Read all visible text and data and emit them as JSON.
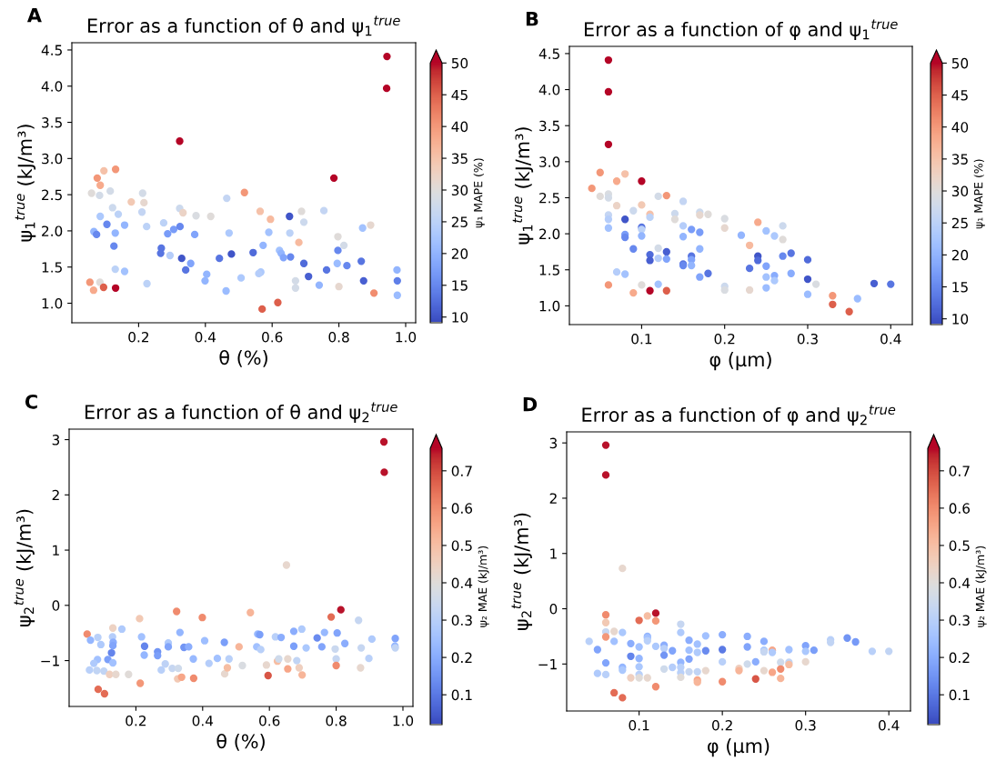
{
  "chart_data": [
    {
      "type": "scatter",
      "title": "Error as a function of θ and ψ$_{1}$$^{true}$",
      "xlabel": "θ (%)",
      "ylabel": "ψ$_{1}$$^{true}$ (kJ/m³)",
      "clabel": "ψ₁ MAPE (%)",
      "annotations": [
        "A"
      ],
      "marker": "circle",
      "grid": false,
      "xlim": [
        0.0,
        1.03
      ],
      "ylim": [
        0.73,
        4.6
      ],
      "xticks": [
        0.2,
        0.4,
        0.6,
        0.8,
        {
          "value": 1,
          "label": "1.0"
        }
      ],
      "yticks": [
        {
          "value": 1,
          "label": "1.0"
        },
        1.5,
        {
          "value": 2,
          "label": "2.0"
        },
        2.5,
        {
          "value": 3,
          "label": "3.0"
        },
        3.5,
        {
          "value": 4,
          "label": "4.0"
        },
        4.5
      ],
      "clim": [
        9.1,
        50
      ],
      "cticks": [
        10,
        15,
        20,
        25,
        30,
        35,
        40,
        45,
        50
      ],
      "x": [
        0.944,
        0.943,
        0.323,
        0.785,
        0.131,
        0.076,
        0.096,
        0.085,
        0.059,
        0.083,
        0.115,
        0.178,
        0.212,
        0.216,
        0.122,
        0.139,
        0.21,
        0.085,
        0.105,
        0.158,
        0.066,
        0.074,
        0.13,
        0.224,
        0.126,
        0.275,
        0.323,
        0.333,
        0.372,
        0.416,
        0.287,
        0.305,
        0.324,
        0.368,
        0.268,
        0.266,
        0.294,
        0.329,
        0.356,
        0.341,
        0.404,
        0.399,
        0.442,
        0.478,
        0.464,
        0.471,
        0.462,
        0.507,
        0.543,
        0.517,
        0.564,
        0.595,
        0.59,
        0.573,
        0.566,
        0.56,
        0.652,
        0.653,
        0.655,
        0.622,
        0.627,
        0.634,
        0.57,
        0.617,
        0.688,
        0.695,
        0.68,
        0.695,
        0.709,
        0.67,
        0.67,
        0.741,
        0.755,
        0.763,
        0.797,
        0.815,
        0.797,
        0.795,
        0.824,
        0.8,
        0.871,
        0.895,
        0.867,
        0.874,
        0.905,
        0.974,
        0.975,
        0.975,
        0.054,
        0.065,
        0.084,
        0.095,
        0.131,
        0.13,
        0.158,
        0.225
      ],
      "values": [
        4.41,
        3.97,
        3.24,
        2.73,
        2.85,
        2.73,
        2.83,
        2.63,
        2.52,
        2.49,
        2.55,
        2.4,
        2.52,
        2.39,
        2.32,
        2.23,
        2.26,
        2.2,
        2.09,
        2.08,
        1.99,
        1.95,
        1.97,
        2.06,
        1.79,
        2.11,
        2.31,
        2.25,
        2.21,
        2.2,
        1.96,
        2.02,
        2.06,
        1.95,
        1.76,
        1.69,
        1.66,
        1.62,
        1.55,
        1.46,
        1.4,
        1.31,
        1.62,
        1.68,
        2.45,
        1.97,
        1.17,
        1.35,
        1.7,
        2.53,
        2.27,
        2.16,
        1.98,
        1.8,
        1.43,
        1.41,
        2.2,
        1.97,
        1.64,
        1.73,
        1.69,
        1.63,
        0.92,
        1.01,
        2.27,
        2.12,
        1.84,
        1.55,
        1.37,
        1.31,
        1.21,
        1.25,
        2.28,
        1.46,
        1.92,
        1.8,
        1.73,
        1.55,
        1.52,
        1.23,
        2.04,
        2.08,
        1.58,
        1.31,
        1.14,
        1.46,
        1.31,
        1.11,
        1.29,
        1.18,
        1.29,
        1.22,
        1.21,
        1.47,
        1.44,
        1.27
      ],
      "cvalues": [
        50,
        50,
        50,
        50,
        40,
        40,
        35,
        38,
        30,
        28,
        28,
        34,
        28,
        31,
        27,
        25,
        26,
        23,
        15,
        20,
        20,
        15,
        20,
        25,
        15,
        25,
        27,
        32,
        29,
        30,
        17,
        17,
        15,
        18,
        13,
        13,
        24,
        10,
        18,
        13,
        20,
        20,
        13,
        10,
        26,
        23,
        21,
        23,
        12,
        40,
        35,
        36,
        22,
        20,
        23,
        24,
        10,
        25,
        15,
        22,
        20,
        18,
        45,
        45,
        30,
        27,
        36,
        12,
        11,
        28,
        28,
        20,
        26,
        13,
        30,
        28,
        15,
        21,
        15,
        31,
        22,
        31,
        13,
        11,
        41,
        20,
        14,
        21,
        40,
        38,
        30,
        45,
        50,
        25,
        22,
        25
      ]
    },
    {
      "type": "scatter",
      "title": "Error as a function of φ and ψ$_{1}$$^{true}$",
      "xlabel": "φ (µm)",
      "ylabel": "ψ$_{1}$$^{true}$ (kJ/m³)",
      "clabel": "ψ₁ MAPE (%)",
      "annotations": [
        "B"
      ],
      "marker": "circle",
      "grid": false,
      "xlim": [
        0.013,
        0.426
      ],
      "ylim": [
        0.74,
        4.6
      ],
      "xticks": [
        0.1,
        0.2,
        0.3,
        0.4
      ],
      "yticks": [
        {
          "value": 1,
          "label": "1.0"
        },
        1.5,
        {
          "value": 2,
          "label": "2.0"
        },
        2.5,
        {
          "value": 3,
          "label": "3.0"
        },
        3.5,
        {
          "value": 4,
          "label": "4.0"
        },
        4.5
      ],
      "clim": [
        9.1,
        50
      ],
      "cticks": [
        10,
        15,
        20,
        25,
        30,
        35,
        40,
        45,
        50
      ],
      "x": [
        0.06,
        0.06,
        0.06,
        0.06,
        0.06,
        0.06,
        0.06,
        0.06,
        0.06,
        0.04,
        0.05,
        0.05,
        0.07,
        0.07,
        0.07,
        0.08,
        0.08,
        0.08,
        0.08,
        0.08,
        0.09,
        0.09,
        0.09,
        0.1,
        0.1,
        0.1,
        0.1,
        0.1,
        0.1,
        0.11,
        0.11,
        0.11,
        0.11,
        0.11,
        0.12,
        0.12,
        0.12,
        0.12,
        0.13,
        0.13,
        0.13,
        0.13,
        0.14,
        0.14,
        0.15,
        0.15,
        0.15,
        0.15,
        0.15,
        0.16,
        0.16,
        0.16,
        0.16,
        0.17,
        0.17,
        0.17,
        0.17,
        0.17,
        0.18,
        0.18,
        0.2,
        0.2,
        0.2,
        0.2,
        0.22,
        0.23,
        0.23,
        0.23,
        0.24,
        0.24,
        0.24,
        0.25,
        0.25,
        0.25,
        0.25,
        0.26,
        0.26,
        0.26,
        0.27,
        0.27,
        0.27,
        0.28,
        0.28,
        0.3,
        0.3,
        0.3,
        0.31,
        0.33,
        0.33,
        0.35,
        0.36,
        0.38,
        0.4
      ],
      "values": [
        4.41,
        3.97,
        3.24,
        2.55,
        2.5,
        2.26,
        2.2,
        2.08,
        1.29,
        2.63,
        2.85,
        2.52,
        2.73,
        2.39,
        1.47,
        2.83,
        2.2,
        1.99,
        1.95,
        1.44,
        2.32,
        1.79,
        1.18,
        2.73,
        2.4,
        2.09,
        2.06,
        1.97,
        1.29,
        2.27,
        2.23,
        1.71,
        1.63,
        1.21,
        2.52,
        1.8,
        1.66,
        1.3,
        2.53,
        1.75,
        1.65,
        1.21,
        2.28,
        2.2,
        2.45,
        2.11,
        1.96,
        1.58,
        1.56,
        2.06,
        1.69,
        1.64,
        1.56,
        2.3,
        2.26,
        2.02,
        1.79,
        1.4,
        2.27,
        1.45,
        2.21,
        2.08,
        1.27,
        1.22,
        1.98,
        1.84,
        1.52,
        1.22,
        2.16,
        1.69,
        1.63,
        2.04,
        1.55,
        1.4,
        1.25,
        1.97,
        1.42,
        1.35,
        2.11,
        1.92,
        1.69,
        1.73,
        1.45,
        1.64,
        1.37,
        1.16,
        1.3,
        1.14,
        1.02,
        0.92,
        1.1,
        1.31,
        1.3
      ],
      "cvalues": [
        50,
        50,
        50,
        29,
        28,
        26,
        24,
        22,
        40,
        40,
        40,
        30,
        38,
        32,
        24,
        35,
        10,
        17,
        15,
        22,
        27,
        15,
        38,
        50,
        34,
        13,
        25,
        20,
        30,
        35,
        25,
        12,
        11,
        50,
        28,
        28,
        24,
        22,
        40,
        11,
        18,
        45,
        27,
        30,
        26,
        24,
        20,
        13,
        15,
        17,
        13,
        18,
        20,
        27,
        31,
        17,
        20,
        18,
        30,
        13,
        29,
        31,
        27,
        29,
        20,
        36,
        13,
        31,
        38,
        10,
        12,
        22,
        18,
        22,
        21,
        23,
        19,
        23,
        27,
        30,
        15,
        13,
        19,
        12,
        10,
        21,
        29,
        40,
        45,
        45,
        21,
        11,
        13
      ]
    },
    {
      "type": "scatter",
      "title": "Error as a function of θ and ψ$_{2}$$^{true}$",
      "xlabel": "θ (%)",
      "ylabel": "ψ$_{2}$$^{true}$ (kJ/m³)",
      "clabel": "ψ₂ MAE (kJ/m³)",
      "annotations": [
        "C"
      ],
      "marker": "circle",
      "grid": false,
      "xlim": [
        0.0,
        1.03
      ],
      "ylim": [
        -1.83,
        3.19
      ],
      "xticks": [
        0.2,
        0.4,
        0.6,
        0.8,
        {
          "value": 1,
          "label": "1.0"
        }
      ],
      "yticks": [
        {
          "value": -1,
          "label": "−1"
        },
        0,
        1,
        2,
        3
      ],
      "clim": [
        0.02,
        0.76
      ],
      "cticks": [
        0.1,
        0.2,
        0.3,
        0.4,
        0.5,
        0.6,
        0.7
      ],
      "x": [
        0.943,
        0.944,
        0.651,
        0.814,
        0.785,
        0.867,
        0.322,
        0.399,
        0.543,
        0.211,
        0.054,
        0.131,
        0.158,
        0.064,
        0.086,
        0.095,
        0.13,
        0.132,
        0.131,
        0.127,
        0.116,
        0.131,
        0.085,
        0.074,
        0.061,
        0.083,
        0.104,
        0.121,
        0.14,
        0.178,
        0.087,
        0.106,
        0.213,
        0.217,
        0.226,
        0.225,
        0.265,
        0.265,
        0.276,
        0.288,
        0.297,
        0.297,
        0.309,
        0.327,
        0.325,
        0.337,
        0.332,
        0.344,
        0.358,
        0.373,
        0.372,
        0.406,
        0.419,
        0.444,
        0.465,
        0.466,
        0.474,
        0.479,
        0.509,
        0.519,
        0.565,
        0.571,
        0.562,
        0.574,
        0.596,
        0.591,
        0.618,
        0.635,
        0.624,
        0.628,
        0.655,
        0.655,
        0.673,
        0.673,
        0.682,
        0.697,
        0.71,
        0.689,
        0.698,
        0.743,
        0.765,
        0.757,
        0.797,
        0.803,
        0.826,
        0.8,
        0.8,
        0.873,
        0.875,
        0.898,
        0.907,
        0.977,
        0.976,
        0.977
      ],
      "values": [
        2.96,
        2.41,
        0.73,
        -0.08,
        -0.21,
        -0.27,
        -0.11,
        -0.22,
        -0.13,
        -0.24,
        -0.52,
        -0.41,
        -0.43,
        -0.63,
        -0.58,
        -0.71,
        -0.57,
        -0.67,
        -0.73,
        -0.86,
        -0.98,
        -1.04,
        -0.98,
        -1.05,
        -1.17,
        -1.18,
        -1.19,
        -1.25,
        -1.25,
        -1.25,
        -1.52,
        -1.6,
        -1.41,
        -0.57,
        -0.74,
        -0.9,
        -0.84,
        -0.91,
        -1.17,
        -1.06,
        -0.68,
        -0.75,
        -1.14,
        -1.14,
        -1.33,
        -1.3,
        -0.49,
        -0.76,
        -0.75,
        -1.32,
        -0.97,
        -0.64,
        -1.05,
        -0.96,
        -0.67,
        -1.24,
        -1.13,
        -0.97,
        -0.75,
        -1.09,
        -0.52,
        -0.53,
        -0.75,
        -0.8,
        -1.27,
        -1.08,
        -0.57,
        -0.58,
        -1.01,
        -0.97,
        -0.97,
        -1.15,
        -0.47,
        -0.74,
        -1.0,
        -0.43,
        -0.77,
        -1.13,
        -1.26,
        -0.59,
        -0.49,
        -0.75,
        -0.79,
        -0.5,
        -0.69,
        -0.97,
        -1.09,
        -1.13,
        -0.77,
        -0.96,
        -0.61,
        -0.6,
        -0.74,
        -0.77
      ],
      "cvalues": [
        0.75,
        0.75,
        0.42,
        0.75,
        0.65,
        0.33,
        0.6,
        0.6,
        0.52,
        0.47,
        0.6,
        0.44,
        0.28,
        0.22,
        0.3,
        0.28,
        0.29,
        0.2,
        0.18,
        0.12,
        0.17,
        0.25,
        0.25,
        0.28,
        0.3,
        0.32,
        0.32,
        0.45,
        0.42,
        0.4,
        0.65,
        0.65,
        0.58,
        0.25,
        0.12,
        0.22,
        0.15,
        0.17,
        0.3,
        0.31,
        0.28,
        0.18,
        0.33,
        0.35,
        0.47,
        0.55,
        0.22,
        0.15,
        0.2,
        0.6,
        0.23,
        0.24,
        0.29,
        0.25,
        0.17,
        0.42,
        0.5,
        0.3,
        0.52,
        0.38,
        0.23,
        0.17,
        0.25,
        0.3,
        0.68,
        0.42,
        0.3,
        0.2,
        0.5,
        0.35,
        0.42,
        0.55,
        0.2,
        0.17,
        0.32,
        0.28,
        0.27,
        0.45,
        0.52,
        0.13,
        0.23,
        0.18,
        0.34,
        0.18,
        0.2,
        0.33,
        0.6,
        0.42,
        0.33,
        0.3,
        0.28,
        0.18,
        0.22,
        0.32
      ]
    },
    {
      "type": "scatter",
      "title": "Error as a function of φ and ψ$_{2}$$^{true}$",
      "xlabel": "φ (µm)",
      "ylabel": "ψ$_{2}$$^{true}$ (kJ/m³)",
      "clabel": "ψ₂ MAE (kJ/m³)",
      "annotations": [
        "D"
      ],
      "marker": "circle",
      "grid": false,
      "xlim": [
        0.013,
        0.426
      ],
      "ylim": [
        -1.85,
        3.2
      ],
      "xticks": [
        0.1,
        0.2,
        0.3,
        0.4
      ],
      "yticks": [
        {
          "value": -1,
          "label": "−1"
        },
        0,
        1,
        2,
        3
      ],
      "clim": [
        0.02,
        0.76
      ],
      "cticks": [
        0.1,
        0.2,
        0.3,
        0.4,
        0.5,
        0.6,
        0.7
      ],
      "x": [
        0.06,
        0.06,
        0.06,
        0.06,
        0.06,
        0.06,
        0.06,
        0.06,
        0.04,
        0.05,
        0.05,
        0.07,
        0.07,
        0.07,
        0.08,
        0.08,
        0.08,
        0.08,
        0.08,
        0.09,
        0.09,
        0.09,
        0.1,
        0.1,
        0.1,
        0.1,
        0.1,
        0.1,
        0.11,
        0.11,
        0.11,
        0.11,
        0.11,
        0.12,
        0.12,
        0.12,
        0.12,
        0.13,
        0.13,
        0.13,
        0.13,
        0.14,
        0.14,
        0.15,
        0.15,
        0.15,
        0.15,
        0.15,
        0.15,
        0.16,
        0.16,
        0.16,
        0.16,
        0.17,
        0.17,
        0.17,
        0.17,
        0.17,
        0.18,
        0.18,
        0.18,
        0.2,
        0.2,
        0.2,
        0.2,
        0.22,
        0.22,
        0.23,
        0.23,
        0.23,
        0.24,
        0.24,
        0.25,
        0.25,
        0.25,
        0.25,
        0.26,
        0.26,
        0.26,
        0.27,
        0.27,
        0.27,
        0.28,
        0.28,
        0.28,
        0.3,
        0.3,
        0.3,
        0.31,
        0.33,
        0.33,
        0.35,
        0.36,
        0.38,
        0.4
      ],
      "values": [
        2.96,
        2.42,
        -0.11,
        -0.25,
        -0.42,
        -0.51,
        -0.98,
        -1.19,
        -0.59,
        -0.74,
        -1.17,
        -0.41,
        -0.59,
        -1.52,
        0.73,
        -0.43,
        -1.06,
        -1.11,
        -1.61,
        -0.63,
        -0.86,
        -1.25,
        -0.21,
        -0.69,
        -0.9,
        -1.05,
        -1.19,
        -1.25,
        -0.13,
        -0.5,
        -0.53,
        -0.58,
        -1.25,
        -0.08,
        -0.22,
        -0.68,
        -1.41,
        -0.66,
        -0.72,
        -0.84,
        -1.09,
        -0.76,
        -1.06,
        -0.28,
        -0.43,
        -0.97,
        -1.06,
        -1.16,
        -1.24,
        -0.57,
        -0.75,
        -0.91,
        -1.14,
        -0.64,
        -0.79,
        -1.14,
        -1.29,
        -1.33,
        -0.49,
        -0.76,
        -1.12,
        -0.47,
        -0.74,
        -0.96,
        -1.32,
        -1.08,
        -1.12,
        -0.5,
        -0.69,
        -1.0,
        -0.96,
        -1.27,
        -0.59,
        -0.75,
        -0.78,
        -1.12,
        -0.75,
        -0.79,
        -1.15,
        -0.97,
        -1.09,
        -1.26,
        -0.74,
        -0.97,
        -1.01,
        -0.67,
        -0.77,
        -0.96,
        -0.75,
        -0.56,
        -0.61,
        -0.53,
        -0.6,
        -0.77,
        -0.77
      ],
      "cvalues": [
        0.75,
        0.75,
        0.6,
        0.47,
        0.33,
        0.58,
        0.18,
        0.3,
        0.3,
        0.18,
        0.28,
        0.42,
        0.25,
        0.65,
        0.42,
        0.27,
        0.22,
        0.27,
        0.65,
        0.2,
        0.12,
        0.45,
        0.65,
        0.25,
        0.22,
        0.27,
        0.3,
        0.4,
        0.5,
        0.22,
        0.25,
        0.3,
        0.42,
        0.75,
        0.58,
        0.27,
        0.6,
        0.2,
        0.3,
        0.15,
        0.35,
        0.18,
        0.29,
        0.33,
        0.28,
        0.22,
        0.3,
        0.3,
        0.4,
        0.2,
        0.25,
        0.18,
        0.33,
        0.25,
        0.28,
        0.32,
        0.55,
        0.52,
        0.25,
        0.13,
        0.42,
        0.2,
        0.1,
        0.3,
        0.6,
        0.45,
        0.52,
        0.2,
        0.18,
        0.35,
        0.2,
        0.68,
        0.2,
        0.27,
        0.33,
        0.42,
        0.55,
        0.28,
        0.55,
        0.35,
        0.6,
        0.52,
        0.25,
        0.32,
        0.5,
        0.18,
        0.27,
        0.42,
        0.17,
        0.3,
        0.32,
        0.15,
        0.16,
        0.3,
        0.32
      ]
    }
  ]
}
